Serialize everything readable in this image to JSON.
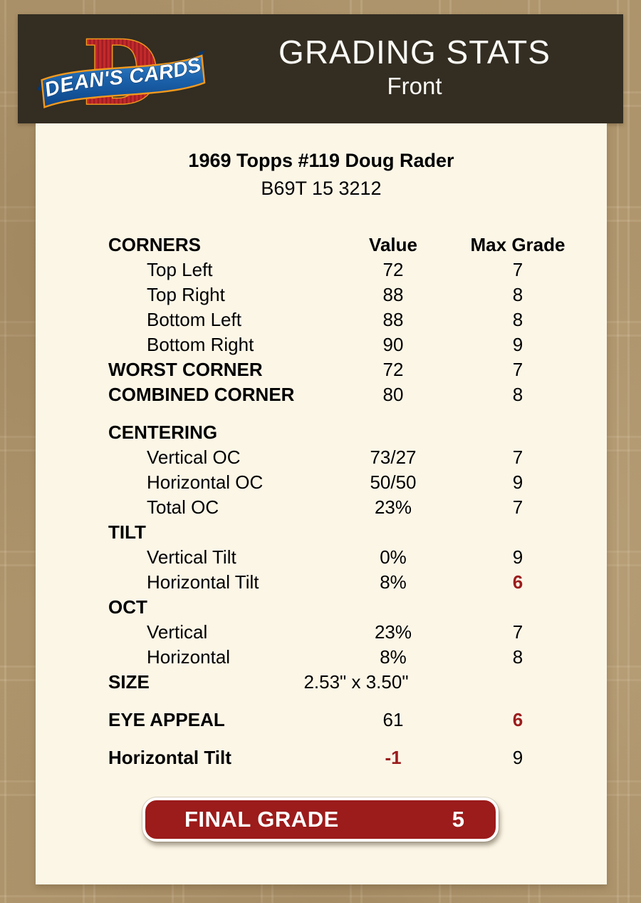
{
  "header": {
    "title": "GRADING STATS",
    "subtitle": "Front",
    "logo_letter": "D",
    "logo_text": "DEAN'S CARDS"
  },
  "card": {
    "title": "1969 Topps #119 Doug Rader",
    "code": "B69T 15 3212"
  },
  "table": {
    "rows": [
      {
        "type": "header",
        "label": "CORNERS",
        "value": "Value",
        "grade": "Max Grade"
      },
      {
        "type": "item",
        "label": "Top Left",
        "value": "72",
        "grade": "7"
      },
      {
        "type": "item",
        "label": "Top Right",
        "value": "88",
        "grade": "8"
      },
      {
        "type": "item",
        "label": "Bottom Left",
        "value": "88",
        "grade": "8"
      },
      {
        "type": "item",
        "label": "Bottom Right",
        "value": "90",
        "grade": "9"
      },
      {
        "type": "strong",
        "label": "WORST CORNER",
        "value": "72",
        "grade": "7"
      },
      {
        "type": "strong",
        "label": "COMBINED CORNER",
        "value": "80",
        "grade": "8"
      },
      {
        "type": "gap"
      },
      {
        "type": "section",
        "label": "CENTERING"
      },
      {
        "type": "item",
        "label": "Vertical OC",
        "value": "73/27",
        "grade": "7"
      },
      {
        "type": "item",
        "label": "Horizontal OC",
        "value": "50/50",
        "grade": "9"
      },
      {
        "type": "item",
        "label": "Total OC",
        "value": "23%",
        "grade": "7"
      },
      {
        "type": "section",
        "label": "TILT"
      },
      {
        "type": "item",
        "label": "Vertical Tilt",
        "value": "0%",
        "grade": "9"
      },
      {
        "type": "item",
        "label": "Horizontal Tilt",
        "value": "8%",
        "grade": "6",
        "grade_red": true
      },
      {
        "type": "section",
        "label": "OCT"
      },
      {
        "type": "item",
        "label": "Vertical",
        "value": "23%",
        "grade": "7"
      },
      {
        "type": "item",
        "label": "Horizontal",
        "value": "8%",
        "grade": "8"
      },
      {
        "type": "strong",
        "label": "SIZE",
        "value": "2.53\" x 3.50\"",
        "grade": "",
        "value_wide": true
      },
      {
        "type": "gap"
      },
      {
        "type": "strong",
        "label": "EYE APPEAL",
        "value": "61",
        "grade": "6",
        "grade_red": true
      },
      {
        "type": "gap"
      },
      {
        "type": "strong",
        "label": "Horizontal Tilt",
        "value": "-1",
        "grade": "9",
        "value_red": true
      }
    ]
  },
  "final_grade": {
    "label": "FINAL GRADE",
    "value": "5"
  },
  "colors": {
    "accent_red": "#9b1c1c",
    "header_bg": "#332d22",
    "panel_bg": "#fcf6e7",
    "page_bg": "#b2986f",
    "logo_red": "#c32a2c",
    "logo_blue": "#1b62ab",
    "logo_gold": "#f2991d"
  }
}
